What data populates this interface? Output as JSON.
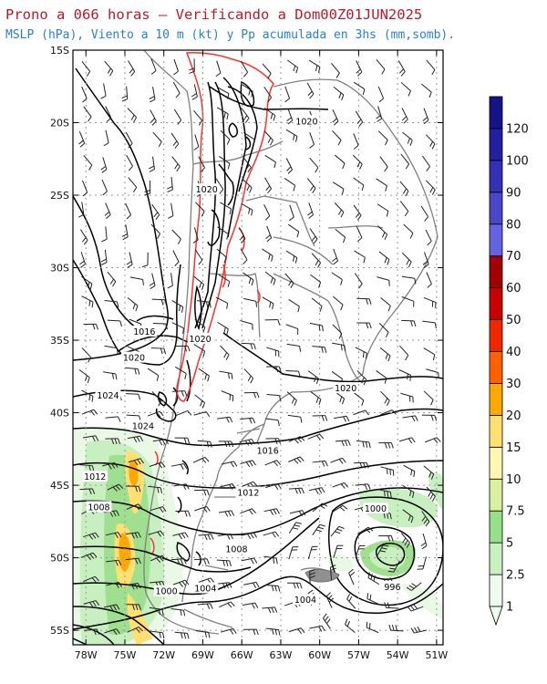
{
  "title": "Prono a 066 horas — Verificando a Dom00Z01JUN2025",
  "subtitle": "MSLP (hPa), Viento a 10 m (kt) y Pp acumulada en 3hs (mm,somb).",
  "lat_ticks": [
    "15S",
    "20S",
    "25S",
    "30S",
    "35S",
    "40S",
    "45S",
    "50S",
    "55S"
  ],
  "lon_ticks": [
    "78W",
    "75W",
    "72W",
    "69W",
    "66W",
    "63W",
    "60W",
    "57W",
    "54W",
    "51W"
  ],
  "isobar_labels": [
    {
      "text": "1020",
      "lon": -61.0,
      "lat": -19.9
    },
    {
      "text": "1020",
      "lon": -68.7,
      "lat": -24.6
    },
    {
      "text": "1016",
      "lon": -73.5,
      "lat": -34.4
    },
    {
      "text": "1020",
      "lon": -69.2,
      "lat": -34.9
    },
    {
      "text": "1020",
      "lon": -74.3,
      "lat": -36.2
    },
    {
      "text": "1024",
      "lon": -76.3,
      "lat": -38.8
    },
    {
      "text": "1024",
      "lon": -73.6,
      "lat": -40.9
    },
    {
      "text": "1020",
      "lon": -58.0,
      "lat": -38.3
    },
    {
      "text": "1016",
      "lon": -64.0,
      "lat": -42.6
    },
    {
      "text": "1012",
      "lon": -77.3,
      "lat": -44.4
    },
    {
      "text": "1012",
      "lon": -65.5,
      "lat": -45.5
    },
    {
      "text": "1008",
      "lon": -77.0,
      "lat": -46.5
    },
    {
      "text": "1008",
      "lon": -66.4,
      "lat": -49.4
    },
    {
      "text": "1000",
      "lon": -55.7,
      "lat": -46.6
    },
    {
      "text": "1004",
      "lon": -68.8,
      "lat": -52.1
    },
    {
      "text": "1000",
      "lon": -71.8,
      "lat": -52.3
    },
    {
      "text": "1004",
      "lon": -61.1,
      "lat": -52.9
    },
    {
      "text": "996",
      "lon": -54.4,
      "lat": -52.0
    }
  ],
  "colorbar": {
    "labels": [
      "1",
      "2.5",
      "5",
      "7.5",
      "10",
      "15",
      "20",
      "30",
      "40",
      "50",
      "60",
      "70",
      "80",
      "90",
      "100",
      "120"
    ],
    "colors": [
      "#f0fbf0",
      "#c8f0c0",
      "#96e08c",
      "#d8f0a0",
      "#fff8b0",
      "#ffe070",
      "#ffa800",
      "#ff6000",
      "#f02800",
      "#c80000",
      "#a00000",
      "#6464e0",
      "#4848c8",
      "#3232b4",
      "#2020a0",
      "#141488"
    ]
  },
  "colors": {
    "isobar": "#000000",
    "coast": "#808080",
    "ridge": "#ff3030",
    "grid": "#999999"
  }
}
